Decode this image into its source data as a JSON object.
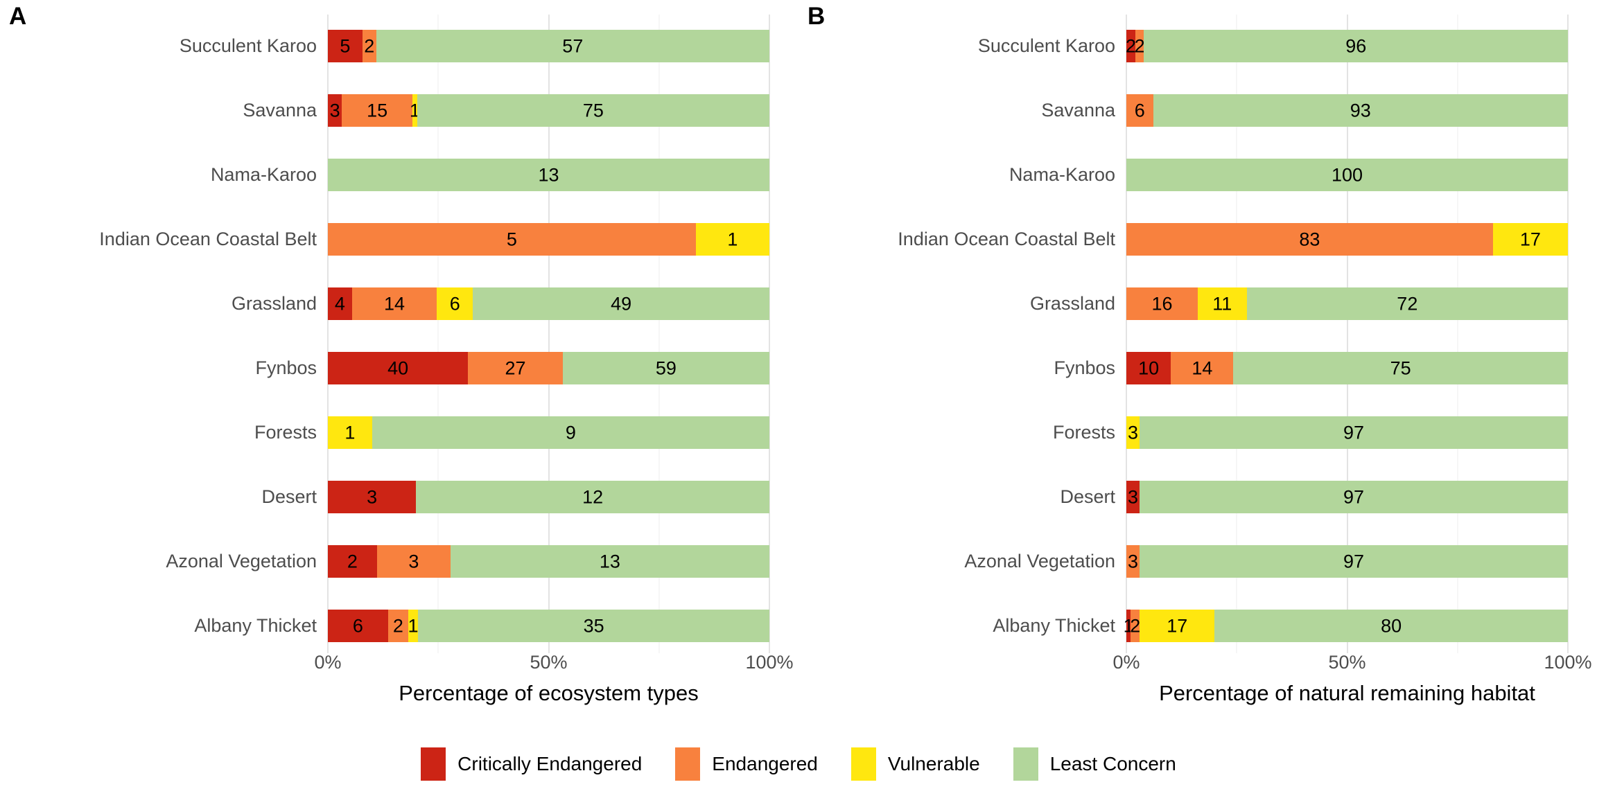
{
  "chart_data": [
    {
      "type": "bar",
      "orientation": "horizontal",
      "stacked": true,
      "normalized": "rows scaled to 100% (position fill); labels show raw counts",
      "panel_tag": "A",
      "xlabel": "Percentage of ecosystem types",
      "xlim": [
        0,
        100
      ],
      "x_ticks": [
        {
          "pos": 0,
          "label": "0%"
        },
        {
          "pos": 50,
          "label": "50%"
        },
        {
          "pos": 100,
          "label": "100%"
        }
      ],
      "grid": {
        "major": [
          0,
          50,
          100
        ],
        "minor": [
          25,
          75
        ]
      },
      "legend_position": "bottom-shared",
      "categories": [
        "Succulent Karoo",
        "Savanna",
        "Nama-Karoo",
        "Indian Ocean Coastal Belt",
        "Grassland",
        "Fynbos",
        "Forests",
        "Desert",
        "Azonal Vegetation",
        "Albany Thicket"
      ],
      "series": [
        {
          "name": "Critically Endangered",
          "color": "#cc2415",
          "values": [
            5,
            3,
            0,
            0,
            4,
            40,
            0,
            3,
            2,
            6
          ]
        },
        {
          "name": "Endangered",
          "color": "#f8813e",
          "values": [
            2,
            15,
            0,
            5,
            14,
            27,
            0,
            0,
            3,
            2
          ]
        },
        {
          "name": "Vulnerable",
          "color": "#ffe70f",
          "values": [
            0,
            1,
            0,
            1,
            6,
            0,
            1,
            0,
            0,
            1
          ]
        },
        {
          "name": "Least Concern",
          "color": "#b2d69b",
          "values": [
            57,
            75,
            13,
            0,
            49,
            59,
            9,
            12,
            13,
            35
          ]
        }
      ]
    },
    {
      "type": "bar",
      "orientation": "horizontal",
      "stacked": true,
      "normalized": "values are percentages of natural remaining habitat",
      "panel_tag": "B",
      "xlabel": "Percentage of natural remaining habitat",
      "xlim": [
        0,
        100
      ],
      "x_ticks": [
        {
          "pos": 0,
          "label": "0%"
        },
        {
          "pos": 50,
          "label": "50%"
        },
        {
          "pos": 100,
          "label": "100%"
        }
      ],
      "grid": {
        "major": [
          0,
          50,
          100
        ],
        "minor": [
          25,
          75
        ]
      },
      "legend_position": "bottom-shared",
      "categories": [
        "Succulent Karoo",
        "Savanna",
        "Nama-Karoo",
        "Indian Ocean Coastal Belt",
        "Grassland",
        "Fynbos",
        "Forests",
        "Desert",
        "Azonal Vegetation",
        "Albany Thicket"
      ],
      "series": [
        {
          "name": "Critically Endangered",
          "color": "#cc2415",
          "values": [
            2,
            0,
            0,
            0,
            0,
            10,
            0,
            3,
            0,
            1
          ]
        },
        {
          "name": "Endangered",
          "color": "#f8813e",
          "values": [
            2,
            6,
            0,
            83,
            16,
            14,
            0,
            0,
            3,
            2
          ]
        },
        {
          "name": "Vulnerable",
          "color": "#ffe70f",
          "values": [
            0,
            0,
            0,
            17,
            11,
            0,
            3,
            0,
            0,
            17
          ]
        },
        {
          "name": "Least Concern",
          "color": "#b2d69b",
          "values": [
            96,
            93,
            100,
            0,
            72,
            75,
            97,
            97,
            97,
            80
          ]
        }
      ]
    }
  ],
  "legend": {
    "items": [
      {
        "label": "Critically Endangered",
        "color": "#cc2415"
      },
      {
        "label": "Endangered",
        "color": "#f8813e"
      },
      {
        "label": "Vulnerable",
        "color": "#ffe70f"
      },
      {
        "label": "Least Concern",
        "color": "#b2d69b"
      }
    ]
  },
  "colors": {
    "background": "#ffffff",
    "category_label": "#4d4d4d",
    "tick_label": "#4d4d4d",
    "axis_title": "#000000",
    "value_label": "#000000",
    "grid_major": "#e3e3e3",
    "grid_minor": "#ededed"
  }
}
